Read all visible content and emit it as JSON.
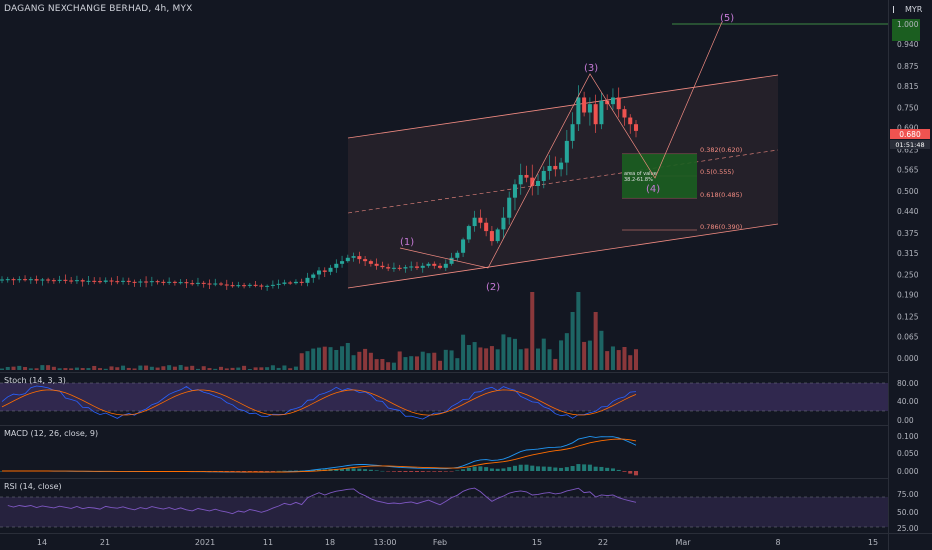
{
  "header": {
    "title": "DAGANG NEXCHANGE BERHAD, 4h, MYX",
    "currency": "MYR"
  },
  "price_axis": {
    "ticks": [
      "1.000",
      "0.940",
      "0.875",
      "0.815",
      "0.750",
      "0.690",
      "0.625",
      "0.565",
      "0.500",
      "0.440",
      "0.375",
      "0.315",
      "0.250",
      "0.190",
      "0.125",
      "0.065",
      "0.000"
    ],
    "last_price": "0.680",
    "countdown": "01:51:48"
  },
  "wave_labels": [
    "(1)",
    "(2)",
    "(3)",
    "(4)",
    "(5)"
  ],
  "fib_levels": [
    {
      "label": "0.382(0.620)"
    },
    {
      "label": "0.5(0.555)"
    },
    {
      "label": "0.618(0.485)"
    },
    {
      "label": "0.786(0.390)"
    }
  ],
  "zone": {
    "line1": "area of value",
    "line2": "38.2-61.8%"
  },
  "panes": {
    "stoch": {
      "title": "Stoch (14, 3, 3)",
      "ticks": [
        "80.00",
        "40.00",
        "0.00"
      ]
    },
    "macd": {
      "title": "MACD (12, 26, close, 9)",
      "ticks": [
        "0.100",
        "0.050",
        "0.000"
      ]
    },
    "rsi": {
      "title": "RSI (14, close)",
      "ticks": [
        "75.00",
        "50.00",
        "25.00"
      ]
    }
  },
  "time_axis": [
    "14",
    "21",
    "2021",
    "11",
    "18",
    "13:00",
    "Feb",
    "15",
    "22",
    "Mar",
    "8",
    "15"
  ],
  "colors": {
    "up": "#26a69a",
    "down": "#ef5350",
    "background": "#131722",
    "channel": "#f28b82",
    "target": "#4caf50",
    "oscillator_band": "#7e57c2"
  },
  "chart_data": {
    "type": "candlestick",
    "title": "DAGANG NEXCHANGE BERHAD, 4h, MYX",
    "yunit": "MYR",
    "ylim": [
      0.0,
      1.0
    ],
    "prices": [
      0.235,
      0.236,
      0.233,
      0.236,
      0.234,
      0.236,
      0.232,
      0.235,
      0.233,
      0.231,
      0.234,
      0.232,
      0.23,
      0.233,
      0.229,
      0.231,
      0.23,
      0.228,
      0.232,
      0.23,
      0.229,
      0.231,
      0.228,
      0.226,
      0.229,
      0.227,
      0.23,
      0.228,
      0.226,
      0.228,
      0.225,
      0.227,
      0.224,
      0.222,
      0.225,
      0.223,
      0.221,
      0.223,
      0.22,
      0.218,
      0.215,
      0.218,
      0.216,
      0.219,
      0.217,
      0.214,
      0.216,
      0.219,
      0.222,
      0.226,
      0.224,
      0.228,
      0.225,
      0.24,
      0.25,
      0.262,
      0.258,
      0.27,
      0.282,
      0.29,
      0.3,
      0.305,
      0.296,
      0.29,
      0.282,
      0.276,
      0.272,
      0.268,
      0.27,
      0.268,
      0.272,
      0.274,
      0.27,
      0.276,
      0.282,
      0.276,
      0.27,
      0.282,
      0.3,
      0.315,
      0.355,
      0.395,
      0.42,
      0.405,
      0.38,
      0.35,
      0.385,
      0.42,
      0.48,
      0.52,
      0.548,
      0.54,
      0.515,
      0.53,
      0.56,
      0.575,
      0.565,
      0.585,
      0.65,
      0.7,
      0.78,
      0.735,
      0.76,
      0.7,
      0.77,
      0.76,
      0.78,
      0.745,
      0.72,
      0.7,
      0.68
    ],
    "projection": {
      "wave4": 0.555,
      "wave5": 1.01
    },
    "fib_retracements": [
      0.62,
      0.555,
      0.485,
      0.39
    ]
  }
}
